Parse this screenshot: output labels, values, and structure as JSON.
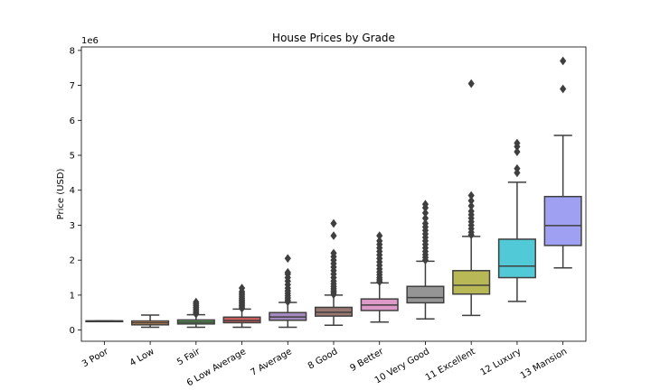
{
  "chart_data": {
    "type": "box",
    "title": "House Prices by Grade",
    "xlabel": "",
    "ylabel": "Price (USD)",
    "y_scale_label": "1e6",
    "ylim": [
      -0.32,
      8.1
    ],
    "yticks": [
      0,
      1,
      2,
      3,
      4,
      5,
      6,
      7,
      8
    ],
    "grid": false,
    "categories": [
      "3 Poor",
      "4 Low",
      "5 Fair",
      "6 Low Average",
      "7 Average",
      "8 Good",
      "9 Better",
      "10 Very Good",
      "11 Excellent",
      "12 Luxury",
      "13 Mansion"
    ],
    "colors": [
      "#3274a1",
      "#e1812c",
      "#3a923a",
      "#c03d3e",
      "#9372b2",
      "#845b53",
      "#d684bd",
      "#7f7f7f",
      "#a9aa35",
      "#2ebece",
      "#8c8cf0"
    ],
    "boxes": [
      {
        "category": "3 Poor",
        "whislo": 0.262,
        "q1": 0.262,
        "med": 0.262,
        "q3": 0.262,
        "whishi": 0.262,
        "fliers": [],
        "color": "#3274a1"
      },
      {
        "category": "4 Low",
        "whislo": 0.08,
        "q1": 0.15,
        "med": 0.205,
        "q3": 0.26,
        "whishi": 0.43,
        "fliers": [],
        "color": "#e1812c"
      },
      {
        "category": "5 Fair",
        "whislo": 0.08,
        "q1": 0.175,
        "med": 0.225,
        "q3": 0.29,
        "whishi": 0.44,
        "fliers": [
          0.46,
          0.5,
          0.55,
          0.6,
          0.65,
          0.7,
          0.75,
          0.8
        ],
        "color": "#3a923a"
      },
      {
        "category": "6 Low Average",
        "whislo": 0.08,
        "q1": 0.21,
        "med": 0.27,
        "q3": 0.37,
        "whishi": 0.6,
        "fliers": [
          0.62,
          0.66,
          0.7,
          0.74,
          0.78,
          0.82,
          0.86,
          0.9,
          0.95,
          1.0,
          1.05,
          1.1,
          1.2
        ],
        "color": "#c03d3e"
      },
      {
        "category": "7 Average",
        "whislo": 0.08,
        "q1": 0.28,
        "med": 0.375,
        "q3": 0.5,
        "whishi": 0.79,
        "fliers": [
          0.81,
          0.86,
          0.92,
          0.98,
          1.05,
          1.12,
          1.2,
          1.3,
          1.4,
          1.5,
          1.6,
          1.65,
          2.05
        ],
        "color": "#9372b2"
      },
      {
        "category": "8 Good",
        "whislo": 0.14,
        "q1": 0.4,
        "med": 0.51,
        "q3": 0.65,
        "whishi": 1.0,
        "fliers": [
          1.02,
          1.07,
          1.12,
          1.18,
          1.25,
          1.32,
          1.4,
          1.5,
          1.6,
          1.7,
          1.8,
          1.9,
          2.0,
          2.1,
          2.2,
          2.7,
          3.05
        ],
        "color": "#845b53"
      },
      {
        "category": "9 Better",
        "whislo": 0.23,
        "q1": 0.56,
        "med": 0.715,
        "q3": 0.89,
        "whishi": 1.35,
        "fliers": [
          1.38,
          1.44,
          1.5,
          1.58,
          1.66,
          1.75,
          1.85,
          1.95,
          2.05,
          2.15,
          2.25,
          2.35,
          2.45,
          2.55,
          2.7
        ],
        "color": "#d684bd"
      },
      {
        "category": "10 Very Good",
        "whislo": 0.32,
        "q1": 0.78,
        "med": 0.93,
        "q3": 1.25,
        "whishi": 1.97,
        "fliers": [
          2.0,
          2.08,
          2.16,
          2.25,
          2.35,
          2.45,
          2.55,
          2.65,
          2.75,
          2.85,
          2.95,
          3.05,
          3.2,
          3.35,
          3.5,
          3.6
        ],
        "color": "#7f7f7f"
      },
      {
        "category": "11 Excellent",
        "whislo": 0.42,
        "q1": 1.03,
        "med": 1.28,
        "q3": 1.7,
        "whishi": 2.68,
        "fliers": [
          2.72,
          2.8,
          2.9,
          3.0,
          3.1,
          3.2,
          3.3,
          3.4,
          3.55,
          3.7,
          3.85,
          7.05
        ],
        "color": "#a9aa35"
      },
      {
        "category": "12 Luxury",
        "whislo": 0.82,
        "q1": 1.5,
        "med": 1.83,
        "q3": 2.6,
        "whishi": 4.23,
        "fliers": [
          4.5,
          4.62,
          5.1,
          5.25,
          5.35
        ],
        "color": "#2ebece"
      },
      {
        "category": "13 Mansion",
        "whislo": 1.78,
        "q1": 2.42,
        "med": 2.99,
        "q3": 3.82,
        "whishi": 5.57,
        "fliers": [
          6.9,
          7.7
        ],
        "color": "#8c8cf0"
      }
    ]
  }
}
